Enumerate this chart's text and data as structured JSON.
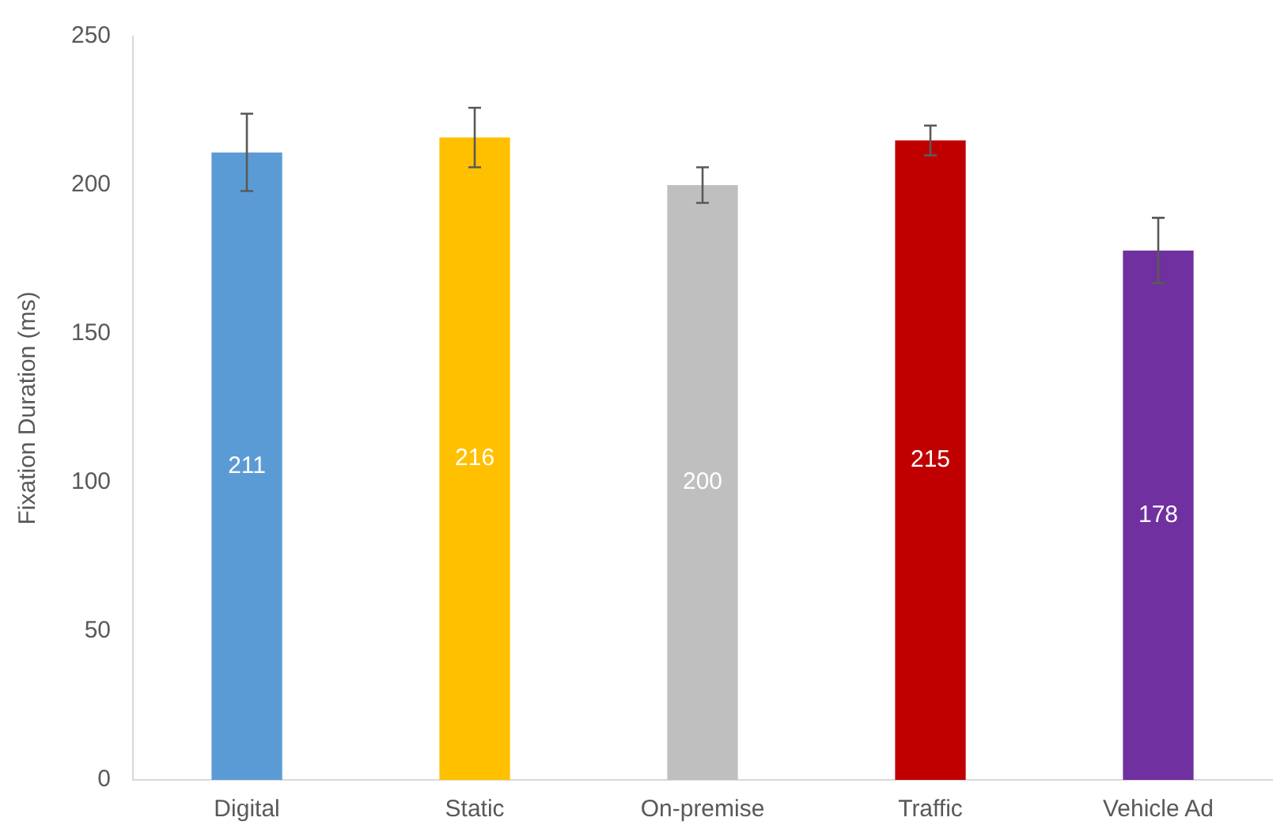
{
  "chart_data": {
    "type": "bar",
    "ylabel": "Fixation Duration (ms)",
    "categories": [
      "Digital",
      "Static",
      "On-premise",
      "Traffic",
      "Vehicle Ad"
    ],
    "values": [
      211,
      216,
      200,
      215,
      178
    ],
    "colors": [
      "#5b9bd5",
      "#ffc000",
      "#bfbfbf",
      "#c00000",
      "#7030a0"
    ],
    "errors": [
      13,
      10,
      6,
      5,
      11
    ],
    "ylim": [
      0,
      250
    ],
    "yticks": [
      0,
      50,
      100,
      150,
      200,
      250
    ],
    "grid": false,
    "legend": false,
    "data_labels": true
  }
}
